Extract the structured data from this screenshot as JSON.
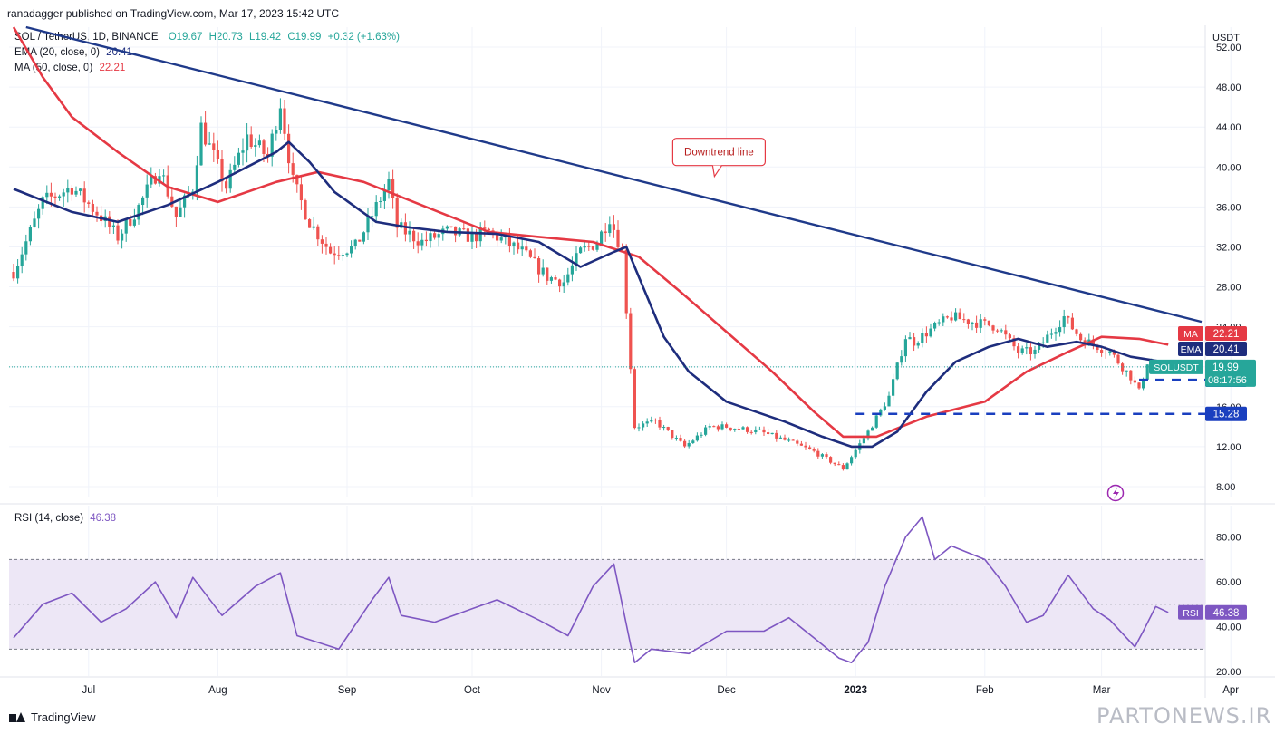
{
  "header": {
    "publisher": "ranadagger published on TradingView.com, Mar 17, 2023 15:42 UTC"
  },
  "legend": {
    "symbol": "SOL / TetherUS, 1D, BINANCE",
    "open": "O19.67",
    "high": "H20.73",
    "low": "L19.42",
    "close": "C19.99",
    "change": "+0.32 (+1.63%)",
    "ema_label": "EMA (20, close, 0)",
    "ema_value": "20.41",
    "ma_label": "MA (50, close, 0)",
    "ma_value": "22.21",
    "rsi_label": "RSI (14, close)",
    "rsi_value": "46.38"
  },
  "annotation": {
    "text": "Downtrend line"
  },
  "footer": {
    "brand": "TradingView"
  },
  "watermark": "PARTONEWS.IR",
  "colors": {
    "up": "#26a69a",
    "down": "#ef5350",
    "ema": "#1e2d7d",
    "ma": "#e53944",
    "trendline": "#1f3a8a",
    "support": "#1a3fbf",
    "rsi_line": "#7e57c2",
    "rsi_band": "#ede7f6",
    "price_label": "#26a69a"
  },
  "chart_data": [
    {
      "type": "candlestick",
      "title": "SOL / TetherUS, 1D, BINANCE",
      "y_unit": "USDT",
      "ylim": [
        7,
        54
      ],
      "y_ticks": [
        8.0,
        12.0,
        16.0,
        20.0,
        24.0,
        28.0,
        32.0,
        36.0,
        40.0,
        44.0,
        48.0,
        52.0
      ],
      "x_labels": [
        "Jul",
        "Aug",
        "Sep",
        "Oct",
        "Nov",
        "Dec",
        "2023",
        "Feb",
        "Mar",
        "Apr"
      ],
      "x_label_dates": [
        "2022-07-01",
        "2022-08-01",
        "2022-09-01",
        "2022-10-01",
        "2022-11-01",
        "2022-12-01",
        "2023-01-01",
        "2023-02-01",
        "2023-03-01",
        "2023-04-01"
      ],
      "date_range": [
        "2022-06-13",
        "2023-03-17"
      ],
      "series": [
        {
          "name": "SOL / TetherUS",
          "approx_close": [
            [
              "2022-06-13",
              29.5
            ],
            [
              "2022-06-20",
              36.5
            ],
            [
              "2022-06-27",
              38.0
            ],
            [
              "2022-07-04",
              35.0
            ],
            [
              "2022-07-08",
              33.0
            ],
            [
              "2022-07-13",
              36.0
            ],
            [
              "2022-07-18",
              40.0
            ],
            [
              "2022-07-22",
              35.0
            ],
            [
              "2022-07-26",
              38.0
            ],
            [
              "2022-07-28",
              44.0
            ],
            [
              "2022-08-03",
              38.0
            ],
            [
              "2022-08-08",
              43.0
            ],
            [
              "2022-08-13",
              41.0
            ],
            [
              "2022-08-16",
              46.5
            ],
            [
              "2022-08-19",
              38.5
            ],
            [
              "2022-08-23",
              34.5
            ],
            [
              "2022-08-28",
              31.5
            ],
            [
              "2022-09-03",
              32.0
            ],
            [
              "2022-09-08",
              36.0
            ],
            [
              "2022-09-11",
              38.5
            ],
            [
              "2022-09-13",
              34.0
            ],
            [
              "2022-09-19",
              32.5
            ],
            [
              "2022-09-25",
              33.5
            ],
            [
              "2022-10-01",
              33.0
            ],
            [
              "2022-10-05",
              33.5
            ],
            [
              "2022-10-13",
              31.5
            ],
            [
              "2022-10-19",
              29.0
            ],
            [
              "2022-10-23",
              28.5
            ],
            [
              "2022-10-27",
              31.5
            ],
            [
              "2022-10-31",
              32.5
            ],
            [
              "2022-11-03",
              35.0
            ],
            [
              "2022-11-06",
              31.5
            ],
            [
              "2022-11-08",
              20.0
            ],
            [
              "2022-11-09",
              14.0
            ],
            [
              "2022-11-14",
              14.5
            ],
            [
              "2022-11-21",
              12.0
            ],
            [
              "2022-11-27",
              14.0
            ],
            [
              "2022-12-01",
              14.0
            ],
            [
              "2022-12-09",
              13.5
            ],
            [
              "2022-12-16",
              12.5
            ],
            [
              "2022-12-22",
              11.5
            ],
            [
              "2022-12-29",
              9.8
            ],
            [
              "2023-01-04",
              13.5
            ],
            [
              "2023-01-09",
              17.0
            ],
            [
              "2023-01-13",
              23.0
            ],
            [
              "2023-01-15",
              22.5
            ],
            [
              "2023-01-20",
              24.0
            ],
            [
              "2023-01-24",
              25.0
            ],
            [
              "2023-01-29",
              24.5
            ],
            [
              "2023-02-04",
              24.0
            ],
            [
              "2023-02-09",
              21.5
            ],
            [
              "2023-02-13",
              21.5
            ],
            [
              "2023-02-17",
              23.5
            ],
            [
              "2023-02-20",
              25.0
            ],
            [
              "2023-02-24",
              22.8
            ],
            [
              "2023-03-03",
              21.5
            ],
            [
              "2023-03-08",
              19.0
            ],
            [
              "2023-03-10",
              17.5
            ],
            [
              "2023-03-12",
              20.5
            ],
            [
              "2023-03-15",
              19.67
            ],
            [
              "2023-03-17",
              19.99
            ]
          ]
        },
        {
          "name": "EMA (20, close, 0)",
          "values": [
            [
              "2022-06-13",
              37.8
            ],
            [
              "2022-06-27",
              35.5
            ],
            [
              "2022-07-08",
              34.5
            ],
            [
              "2022-07-20",
              36.2
            ],
            [
              "2022-08-01",
              38.5
            ],
            [
              "2022-08-08",
              40.0
            ],
            [
              "2022-08-15",
              41.5
            ],
            [
              "2022-08-18",
              42.5
            ],
            [
              "2022-08-23",
              40.5
            ],
            [
              "2022-08-29",
              37.5
            ],
            [
              "2022-09-08",
              34.5
            ],
            [
              "2022-09-15",
              34.0
            ],
            [
              "2022-09-25",
              33.5
            ],
            [
              "2022-10-07",
              33.3
            ],
            [
              "2022-10-17",
              32.5
            ],
            [
              "2022-10-27",
              30.0
            ],
            [
              "2022-11-04",
              31.5
            ],
            [
              "2022-11-07",
              32.0
            ],
            [
              "2022-11-11",
              28.0
            ],
            [
              "2022-11-16",
              23.0
            ],
            [
              "2022-11-22",
              19.5
            ],
            [
              "2022-12-01",
              16.5
            ],
            [
              "2022-12-15",
              14.5
            ],
            [
              "2022-12-24",
              13.0
            ],
            [
              "2022-12-31",
              12.0
            ],
            [
              "2023-01-05",
              12.0
            ],
            [
              "2023-01-11",
              13.5
            ],
            [
              "2023-01-18",
              17.5
            ],
            [
              "2023-01-25",
              20.5
            ],
            [
              "2023-02-02",
              22.0
            ],
            [
              "2023-02-09",
              22.8
            ],
            [
              "2023-02-16",
              22.0
            ],
            [
              "2023-02-23",
              22.5
            ],
            [
              "2023-03-01",
              22.0
            ],
            [
              "2023-03-08",
              21.0
            ],
            [
              "2023-03-17",
              20.41
            ]
          ]
        },
        {
          "name": "MA (50, close, 0)",
          "values": [
            [
              "2022-06-13",
              54.0
            ],
            [
              "2022-06-20",
              49.0
            ],
            [
              "2022-06-27",
              45.0
            ],
            [
              "2022-07-08",
              41.5
            ],
            [
              "2022-07-20",
              38.0
            ],
            [
              "2022-08-01",
              36.5
            ],
            [
              "2022-08-15",
              38.5
            ],
            [
              "2022-08-25",
              39.5
            ],
            [
              "2022-09-05",
              38.5
            ],
            [
              "2022-09-20",
              36.0
            ],
            [
              "2022-10-05",
              33.5
            ],
            [
              "2022-10-17",
              33.0
            ],
            [
              "2022-10-30",
              32.5
            ],
            [
              "2022-11-10",
              31.0
            ],
            [
              "2022-11-20",
              27.5
            ],
            [
              "2022-12-01",
              23.5
            ],
            [
              "2022-12-12",
              19.5
            ],
            [
              "2022-12-22",
              15.5
            ],
            [
              "2022-12-29",
              13.0
            ],
            [
              "2023-01-06",
              13.0
            ],
            [
              "2023-01-18",
              15.0
            ],
            [
              "2023-02-01",
              16.5
            ],
            [
              "2023-02-11",
              19.5
            ],
            [
              "2023-02-21",
              21.5
            ],
            [
              "2023-03-01",
              23.0
            ],
            [
              "2023-03-10",
              22.8
            ],
            [
              "2023-03-17",
              22.21
            ]
          ]
        }
      ],
      "annotations": [
        {
          "text": "Downtrend line",
          "from": [
            "2022-06-16",
            54.0
          ],
          "to": [
            "2023-03-25",
            24.5
          ]
        },
        {
          "label": "18.70",
          "value": 18.7,
          "from": "2023-03-10"
        },
        {
          "label": "15.28",
          "value": 15.28,
          "from": "2023-01-01"
        }
      ],
      "price_labels": [
        {
          "name": "MA",
          "value": "22.21"
        },
        {
          "name": "EMA",
          "value": "20.41"
        },
        {
          "name": "SOLUSDT",
          "value": "19.99",
          "countdown": "08:17:56"
        }
      ]
    },
    {
      "type": "line",
      "title": "RSI (14, close)",
      "ylim": [
        18,
        94
      ],
      "y_ticks": [
        20.0,
        40.0,
        60.0,
        80.0
      ],
      "band": [
        30,
        70
      ],
      "midline": 50,
      "series": [
        {
          "name": "RSI (14, close)",
          "values": [
            [
              "2022-06-13",
              35
            ],
            [
              "2022-06-20",
              50
            ],
            [
              "2022-06-27",
              55
            ],
            [
              "2022-07-04",
              42
            ],
            [
              "2022-07-10",
              48
            ],
            [
              "2022-07-17",
              60
            ],
            [
              "2022-07-22",
              44
            ],
            [
              "2022-07-26",
              62
            ],
            [
              "2022-08-02",
              45
            ],
            [
              "2022-08-10",
              58
            ],
            [
              "2022-08-16",
              64
            ],
            [
              "2022-08-20",
              36
            ],
            [
              "2022-08-30",
              30
            ],
            [
              "2022-09-07",
              52
            ],
            [
              "2022-09-11",
              62
            ],
            [
              "2022-09-14",
              45
            ],
            [
              "2022-09-22",
              42
            ],
            [
              "2022-10-01",
              48
            ],
            [
              "2022-10-07",
              52
            ],
            [
              "2022-10-17",
              43
            ],
            [
              "2022-10-24",
              36
            ],
            [
              "2022-10-30",
              58
            ],
            [
              "2022-11-04",
              68
            ],
            [
              "2022-11-08",
              32
            ],
            [
              "2022-11-09",
              24
            ],
            [
              "2022-11-13",
              30
            ],
            [
              "2022-11-22",
              28
            ],
            [
              "2022-12-01",
              38
            ],
            [
              "2022-12-10",
              38
            ],
            [
              "2022-12-16",
              44
            ],
            [
              "2022-12-22",
              35
            ],
            [
              "2022-12-28",
              26
            ],
            [
              "2022-12-31",
              24
            ],
            [
              "2023-01-04",
              33
            ],
            [
              "2023-01-08",
              58
            ],
            [
              "2023-01-13",
              80
            ],
            [
              "2023-01-17",
              89
            ],
            [
              "2023-01-20",
              70
            ],
            [
              "2023-01-24",
              76
            ],
            [
              "2023-02-01",
              70
            ],
            [
              "2023-02-06",
              58
            ],
            [
              "2023-02-11",
              42
            ],
            [
              "2023-02-15",
              45
            ],
            [
              "2023-02-21",
              63
            ],
            [
              "2023-02-27",
              48
            ],
            [
              "2023-03-03",
              43
            ],
            [
              "2023-03-09",
              31
            ],
            [
              "2023-03-11",
              38
            ],
            [
              "2023-03-14",
              49
            ],
            [
              "2023-03-17",
              46.38
            ]
          ]
        }
      ]
    }
  ]
}
